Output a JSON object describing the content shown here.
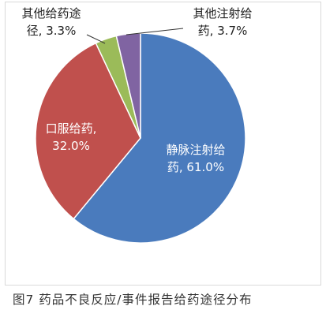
{
  "chart_data": {
    "type": "pie",
    "title": "",
    "slices": [
      {
        "label": "静脉注射给药",
        "label_lines": [
          "静脉注射给",
          "药, 61.0%"
        ],
        "value": 61.0,
        "color": "#4a7bbd"
      },
      {
        "label": "口服给药",
        "label_lines": [
          "口服给药,",
          "32.0%"
        ],
        "value": 32.0,
        "color": "#c0504d"
      },
      {
        "label": "其他给药途径",
        "label_lines": [
          "其他给药途",
          "径, 3.3%"
        ],
        "value": 3.3,
        "color": "#9bbb59"
      },
      {
        "label": "其他注射给药",
        "label_lines": [
          "其他注射给",
          "药, 3.7%"
        ],
        "value": 3.7,
        "color": "#8064a2"
      }
    ],
    "start_angle_deg": 0,
    "direction": "clockwise",
    "caption": "图7 药品不良反应/事件报告给药途径分布"
  },
  "caption_text": "图7 药品不良反应/事件报告给药途径分布"
}
